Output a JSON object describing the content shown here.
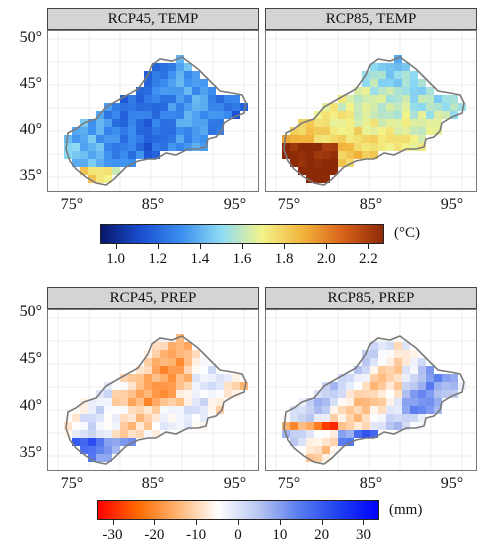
{
  "panels": [
    {
      "title": "RCP45, TEMP"
    },
    {
      "title": "RCP85, TEMP"
    },
    {
      "title": "RCP45, PREP"
    },
    {
      "title": "RCP85, PREP"
    }
  ],
  "axes": {
    "lat_ticks": [
      "50°",
      "45°",
      "40°",
      "35°"
    ],
    "lon_ticks": [
      "75°",
      "85°",
      "95°"
    ]
  },
  "legends": {
    "temp": {
      "unit": "(°C)",
      "labels": [
        "1.0",
        "1.2",
        "1.4",
        "1.6",
        "1.8",
        "2.0",
        "2.2"
      ],
      "colors": [
        "#08176b",
        "#1a4fd1",
        "#3b8ff0",
        "#8fdcf3",
        "#f3f38a",
        "#f2b43c",
        "#d9621a",
        "#8c2a08"
      ]
    },
    "prep": {
      "unit": "(mm)",
      "labels": [
        "-30",
        "-20",
        "-10",
        "0",
        "10",
        "20",
        "30"
      ],
      "colors": [
        "#ff0000",
        "#ff6a00",
        "#ffb574",
        "#ffffff",
        "#b9c7f1",
        "#5a7df0",
        "#1f43f0",
        "#0000ff"
      ]
    }
  }
}
